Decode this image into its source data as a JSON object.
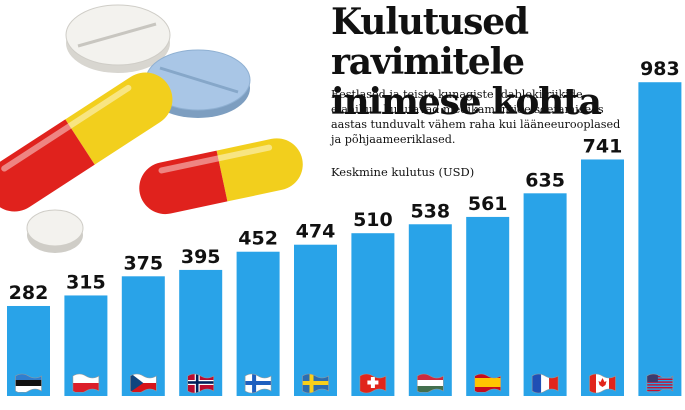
{
  "header": {
    "title_line1": "Kulutused ravimitele",
    "title_line2": "inimese kohta",
    "description": "Eestlased ja teiste kunagiste idabloki riikide elanikud kulutavad medikamentide soetami­seks aastas tunduvalt vähem raha kui lääne­eurooplased ja põhjaameeriklased."
  },
  "chart_data": {
    "type": "bar",
    "title": "Kulutused ravimitele inimese kohta",
    "ylabel": "Keskmine kulutus (USD)",
    "categories": [
      "Eesti",
      "Poola",
      "Tšehhi",
      "Norra",
      "Soome",
      "Rootsi",
      "Šveits",
      "Ungari",
      "Hispaania",
      "Prantsusmaa",
      "Kanada",
      "USA"
    ],
    "values": [
      282,
      315,
      375,
      395,
      452,
      474,
      510,
      538,
      561,
      635,
      741,
      983
    ],
    "bar_color": "#29a3e8",
    "flags": [
      "estonia-flag-icon",
      "poland-flag-icon",
      "czech-flag-icon",
      "norway-flag-icon",
      "finland-flag-icon",
      "sweden-flag-icon",
      "switzerland-flag-icon",
      "hungary-flag-icon",
      "spain-flag-icon",
      "france-flag-icon",
      "canada-flag-icon",
      "usa-flag-icon"
    ]
  }
}
